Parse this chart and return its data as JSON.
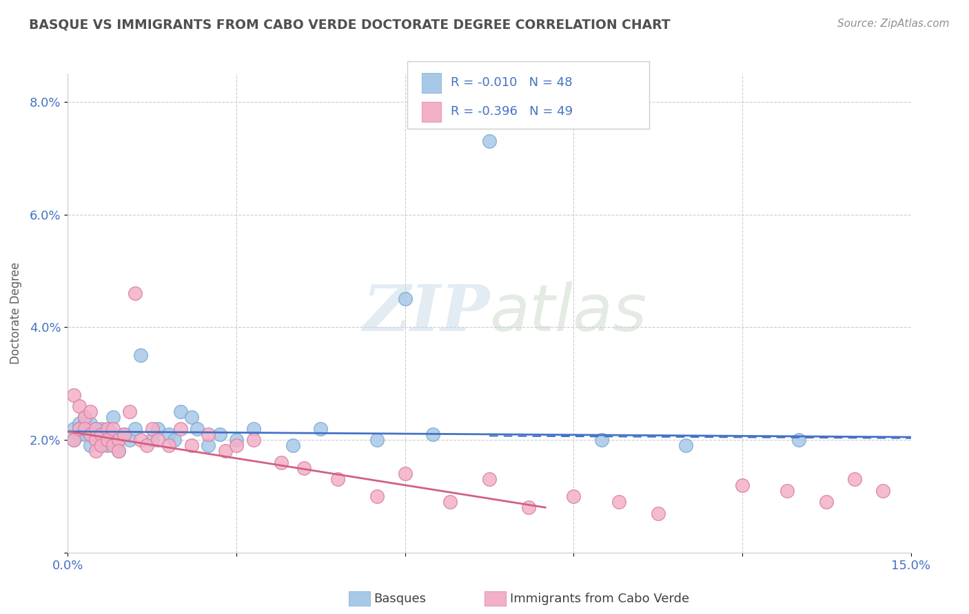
{
  "title": "BASQUE VS IMMIGRANTS FROM CABO VERDE DOCTORATE DEGREE CORRELATION CHART",
  "source": "Source: ZipAtlas.com",
  "ylabel": "Doctorate Degree",
  "xlim": [
    0.0,
    0.15
  ],
  "ylim": [
    0.0,
    0.085
  ],
  "xticks": [
    0.0,
    0.03,
    0.06,
    0.09,
    0.12,
    0.15
  ],
  "xticklabels": [
    "0.0%",
    "",
    "",
    "",
    "",
    "15.0%"
  ],
  "yticks": [
    0.0,
    0.02,
    0.04,
    0.06,
    0.08
  ],
  "yticklabels": [
    "",
    "2.0%",
    "4.0%",
    "6.0%",
    "8.0%"
  ],
  "basque_color": "#a8c8e8",
  "caboverde_color": "#f4b0c8",
  "basque_line_color": "#4472c4",
  "caboverde_line_color": "#d4607880",
  "legend_text_color": "#4472c4",
  "title_color": "#505050",
  "source_color": "#909090",
  "R_basque": -0.01,
  "N_basque": 48,
  "R_caboverde": -0.396,
  "N_caboverde": 49,
  "basque_x": [
    0.001,
    0.001,
    0.002,
    0.002,
    0.002,
    0.003,
    0.003,
    0.003,
    0.004,
    0.004,
    0.004,
    0.005,
    0.005,
    0.005,
    0.006,
    0.006,
    0.006,
    0.007,
    0.007,
    0.008,
    0.008,
    0.008,
    0.009,
    0.009,
    0.01,
    0.011,
    0.012,
    0.013,
    0.015,
    0.016,
    0.018,
    0.019,
    0.02,
    0.022,
    0.023,
    0.025,
    0.027,
    0.03,
    0.033,
    0.04,
    0.045,
    0.055,
    0.06,
    0.065,
    0.075,
    0.095,
    0.11,
    0.13
  ],
  "basque_y": [
    0.022,
    0.02,
    0.021,
    0.023,
    0.022,
    0.021,
    0.023,
    0.024,
    0.019,
    0.021,
    0.023,
    0.02,
    0.021,
    0.022,
    0.019,
    0.022,
    0.02,
    0.019,
    0.022,
    0.02,
    0.024,
    0.021,
    0.018,
    0.02,
    0.021,
    0.02,
    0.022,
    0.035,
    0.02,
    0.022,
    0.021,
    0.02,
    0.025,
    0.024,
    0.022,
    0.019,
    0.021,
    0.02,
    0.022,
    0.019,
    0.022,
    0.02,
    0.045,
    0.021,
    0.073,
    0.02,
    0.019,
    0.02
  ],
  "caboverde_x": [
    0.001,
    0.001,
    0.002,
    0.002,
    0.003,
    0.003,
    0.004,
    0.004,
    0.005,
    0.005,
    0.005,
    0.006,
    0.006,
    0.007,
    0.007,
    0.008,
    0.008,
    0.009,
    0.009,
    0.01,
    0.011,
    0.012,
    0.013,
    0.014,
    0.015,
    0.016,
    0.018,
    0.02,
    0.022,
    0.025,
    0.028,
    0.03,
    0.033,
    0.038,
    0.042,
    0.048,
    0.055,
    0.06,
    0.068,
    0.075,
    0.082,
    0.09,
    0.098,
    0.105,
    0.12,
    0.128,
    0.135,
    0.14,
    0.145
  ],
  "caboverde_y": [
    0.02,
    0.028,
    0.022,
    0.026,
    0.024,
    0.022,
    0.025,
    0.021,
    0.02,
    0.022,
    0.018,
    0.021,
    0.019,
    0.022,
    0.02,
    0.019,
    0.022,
    0.02,
    0.018,
    0.021,
    0.025,
    0.046,
    0.02,
    0.019,
    0.022,
    0.02,
    0.019,
    0.022,
    0.019,
    0.021,
    0.018,
    0.019,
    0.02,
    0.016,
    0.015,
    0.013,
    0.01,
    0.014,
    0.009,
    0.013,
    0.008,
    0.01,
    0.009,
    0.007,
    0.012,
    0.011,
    0.009,
    0.013,
    0.011
  ],
  "background_color": "#ffffff",
  "grid_color": "#cccccc"
}
